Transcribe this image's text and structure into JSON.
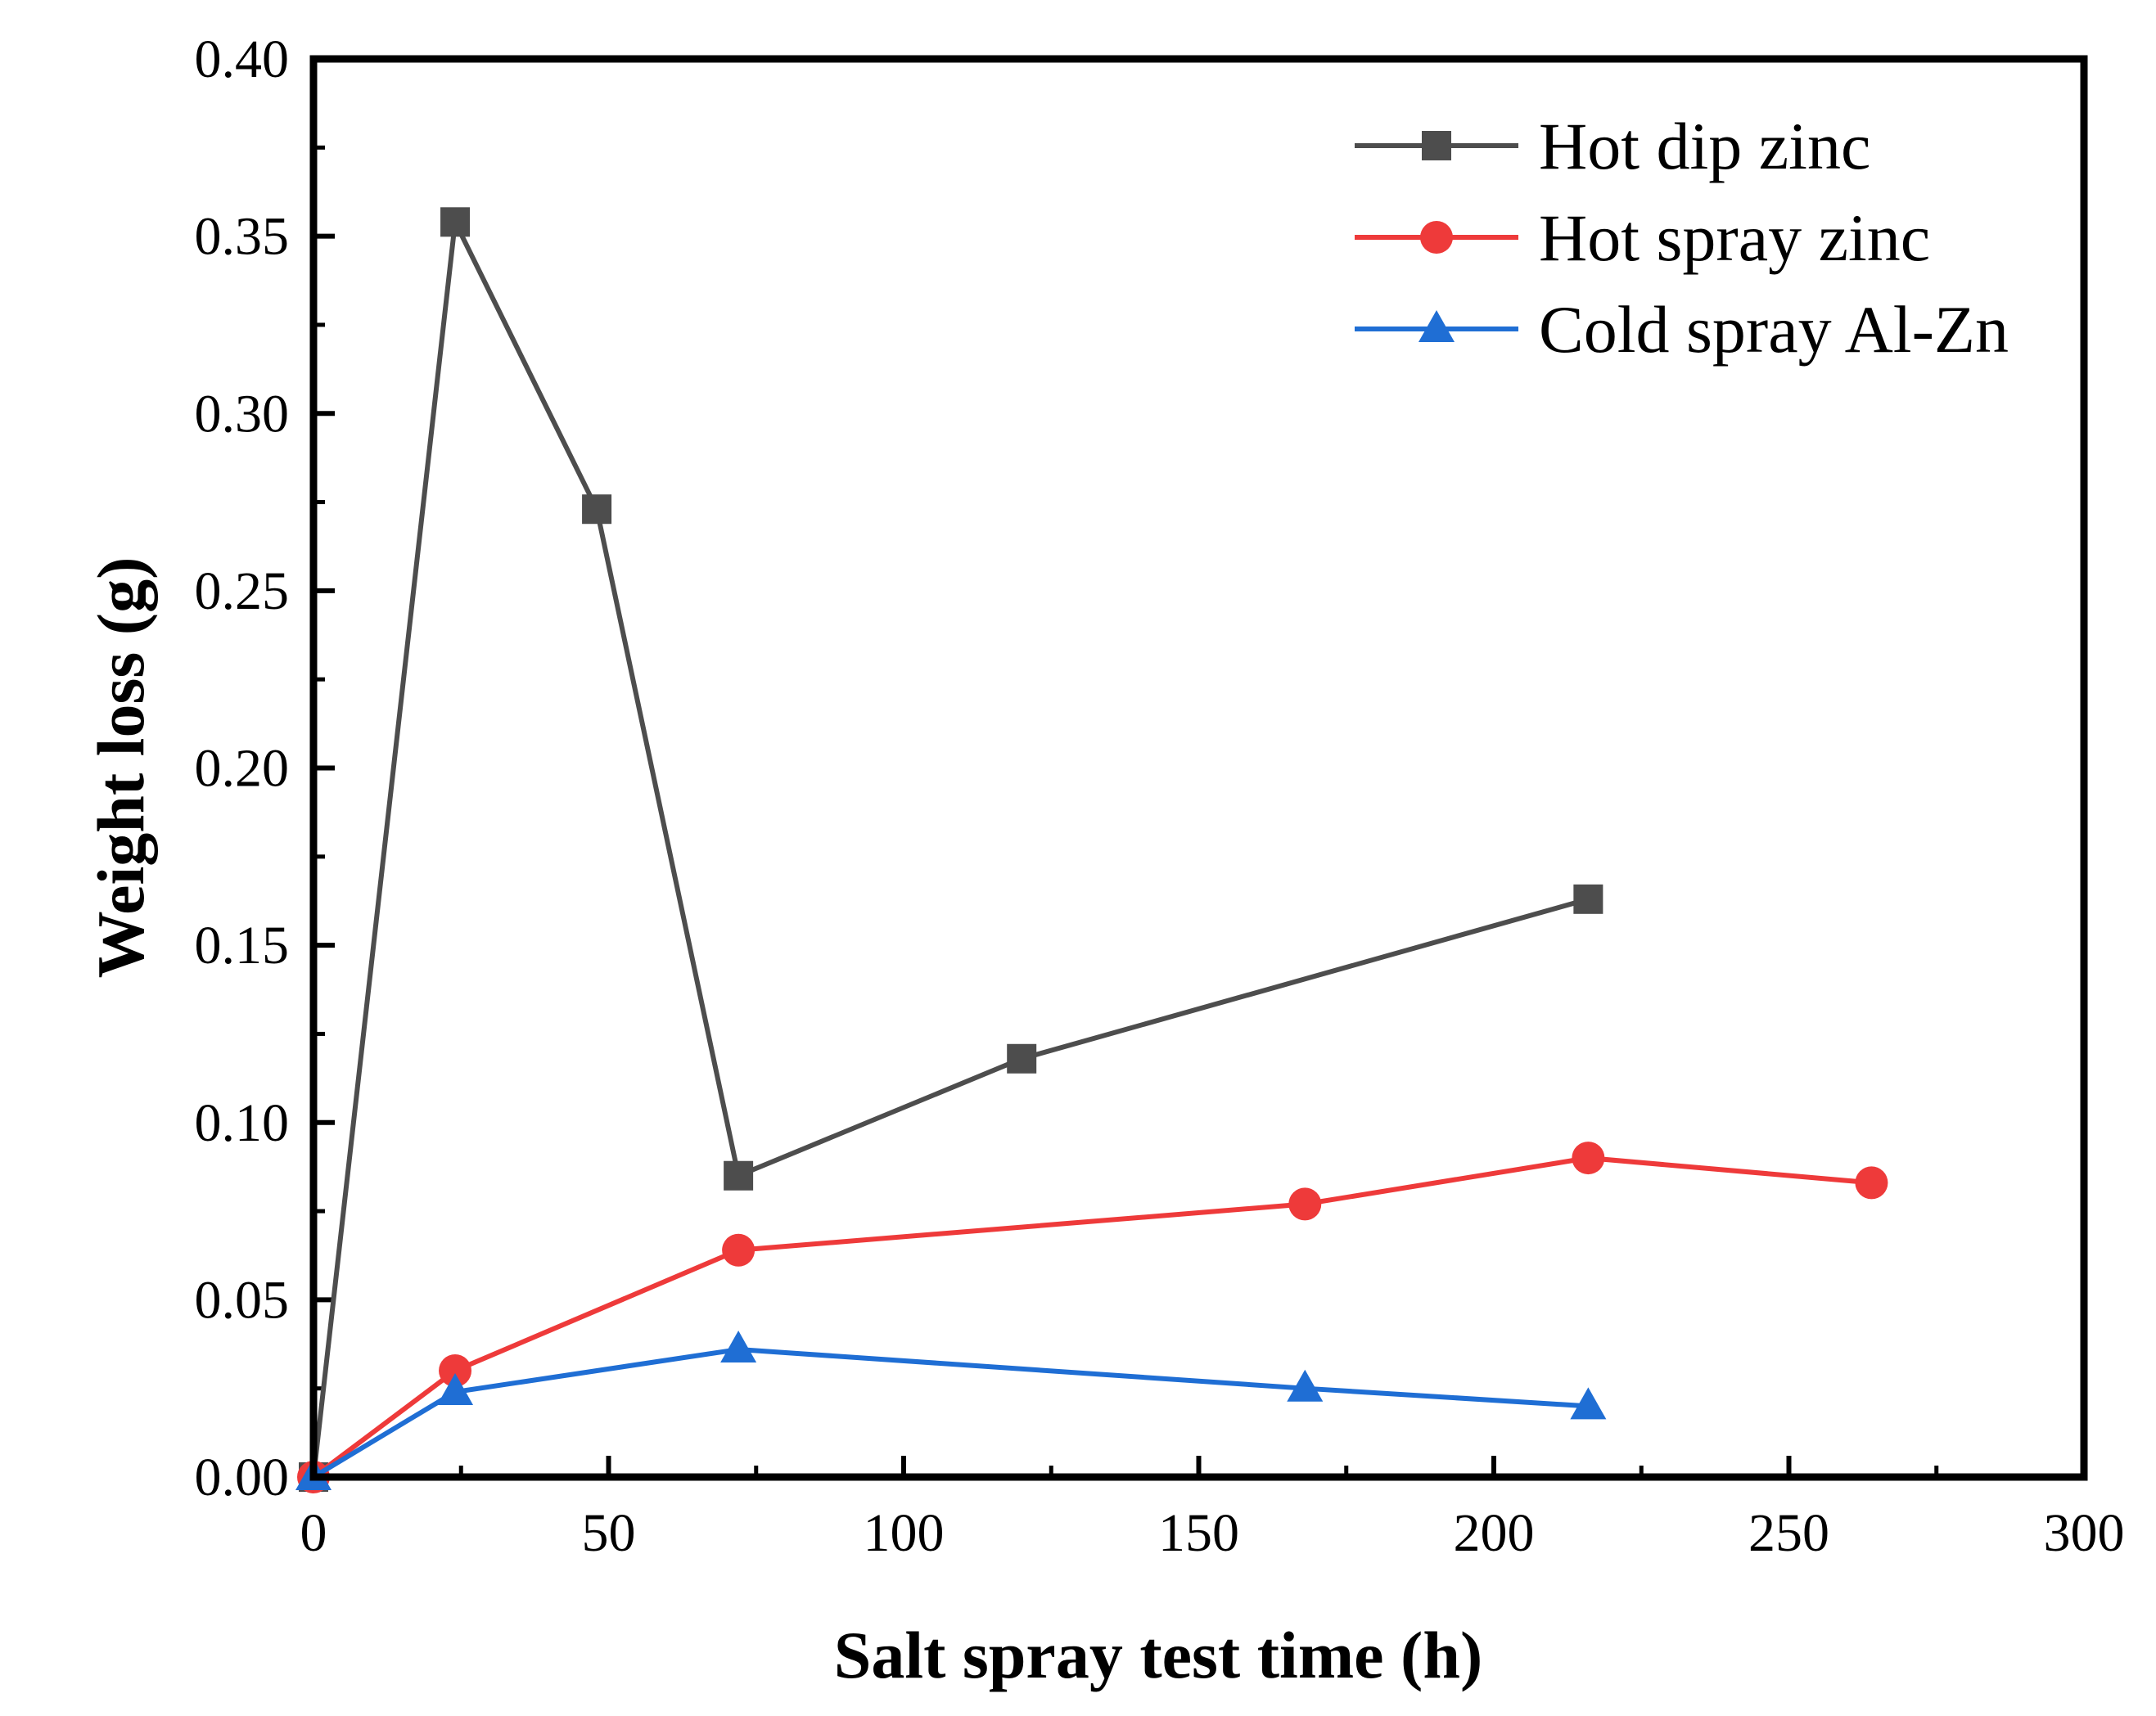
{
  "chart_data": {
    "type": "line",
    "title": "",
    "xlabel": "Salt spray test time (h)",
    "ylabel": "Weight loss (g)",
    "xlim": [
      0,
      300
    ],
    "ylim": [
      0,
      0.4
    ],
    "x_ticks": [
      0,
      50,
      100,
      150,
      200,
      250,
      300
    ],
    "x_tick_labels": [
      "0",
      "50",
      "100",
      "150",
      "200",
      "250",
      "300"
    ],
    "y_ticks": [
      0,
      0.05,
      0.1,
      0.15,
      0.2,
      0.25,
      0.3,
      0.35,
      0.4
    ],
    "y_tick_labels": [
      "0.00",
      "0.05",
      "0.10",
      "0.15",
      "0.20",
      "0.25",
      "0.30",
      "0.35",
      "0.40"
    ],
    "grid": false,
    "legend_position": "top-right",
    "series": [
      {
        "name": "Hot dip zinc",
        "color": "#4d4d4d",
        "marker": "square",
        "x": [
          0,
          24,
          48,
          72,
          120,
          216
        ],
        "y": [
          0,
          0.354,
          0.273,
          0.085,
          0.118,
          0.163
        ]
      },
      {
        "name": "Hot spray zinc",
        "color": "#ee3a3a",
        "marker": "circle",
        "x": [
          0,
          24,
          72,
          168,
          216,
          264
        ],
        "y": [
          0,
          0.03,
          0.064,
          0.077,
          0.09,
          0.083
        ]
      },
      {
        "name": "Cold spray Al-Zn",
        "color": "#1f6ed4",
        "marker": "triangle",
        "x": [
          0,
          24,
          72,
          168,
          216
        ],
        "y": [
          0,
          0.024,
          0.036,
          0.025,
          0.02
        ]
      }
    ]
  }
}
